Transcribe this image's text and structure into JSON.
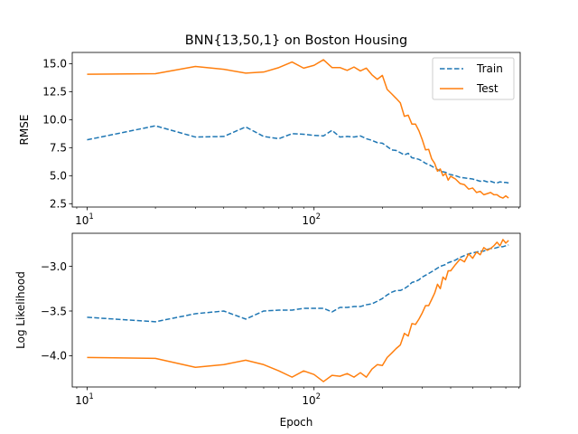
{
  "figure": {
    "title": "BNN{13,50,1} on Boston Housing"
  },
  "chart_data": [
    {
      "type": "line",
      "title": "BNN{13,50,1} on Boston Housing",
      "xlabel": "",
      "ylabel": "RMSE",
      "xscale": "log",
      "xlim": [
        8.6,
        810
      ],
      "ylim": [
        2.2,
        16.0
      ],
      "yticks": [
        2.5,
        5.0,
        7.5,
        10.0,
        12.5,
        15.0
      ],
      "ytick_labels": [
        "2.5",
        "5.0",
        "7.5",
        "10.0",
        "12.5",
        "15.0"
      ],
      "xticks": [
        10,
        100
      ],
      "xtick_labels": [
        {
          "base": "10",
          "exp": "1"
        },
        {
          "base": "10",
          "exp": "2"
        }
      ],
      "legend": {
        "position": "top-right",
        "entries": [
          "Train",
          "Test"
        ]
      },
      "series": [
        {
          "name": "Train",
          "color": "#1f77b4",
          "style": "dashed",
          "x": [
            10,
            20,
            30,
            40,
            50,
            60,
            70,
            80,
            90,
            100,
            110,
            120,
            130,
            140,
            150,
            160,
            170,
            180,
            190,
            200,
            210,
            220,
            230,
            240,
            250,
            260,
            270,
            280,
            290,
            300,
            310,
            320,
            330,
            340,
            350,
            360,
            370,
            380,
            390,
            400,
            420,
            440,
            460,
            480,
            500,
            520,
            540,
            560,
            580,
            600,
            620,
            640,
            660,
            680,
            700,
            720
          ],
          "y": [
            8.2,
            9.45,
            8.45,
            8.5,
            9.35,
            8.5,
            8.3,
            8.75,
            8.7,
            8.6,
            8.55,
            9.05,
            8.45,
            8.5,
            8.45,
            8.55,
            8.3,
            8.15,
            7.95,
            7.9,
            7.6,
            7.3,
            7.25,
            7.05,
            6.85,
            7.0,
            6.6,
            6.55,
            6.45,
            6.3,
            6.1,
            6.0,
            5.85,
            5.7,
            5.55,
            5.4,
            5.35,
            5.3,
            5.15,
            5.1,
            5.0,
            4.85,
            4.8,
            4.75,
            4.7,
            4.6,
            4.5,
            4.55,
            4.45,
            4.5,
            4.4,
            4.35,
            4.45,
            4.4,
            4.4,
            4.35
          ]
        },
        {
          "name": "Test",
          "color": "#ff7f0e",
          "style": "solid",
          "x": [
            10,
            20,
            30,
            40,
            50,
            60,
            70,
            80,
            90,
            100,
            110,
            120,
            130,
            140,
            150,
            160,
            170,
            180,
            190,
            200,
            210,
            220,
            230,
            240,
            250,
            260,
            270,
            280,
            290,
            300,
            310,
            320,
            330,
            340,
            350,
            360,
            370,
            380,
            390,
            400,
            420,
            440,
            460,
            480,
            500,
            520,
            540,
            560,
            580,
            600,
            620,
            640,
            660,
            680,
            700,
            720
          ],
          "y": [
            14.05,
            14.1,
            14.75,
            14.5,
            14.15,
            14.25,
            14.65,
            15.15,
            14.6,
            14.85,
            15.35,
            14.65,
            14.65,
            14.4,
            14.7,
            14.35,
            14.6,
            14.0,
            13.6,
            13.95,
            12.7,
            12.3,
            11.9,
            11.5,
            10.3,
            10.4,
            9.6,
            9.6,
            9.0,
            8.2,
            7.3,
            7.35,
            6.5,
            6.1,
            5.4,
            5.6,
            5.0,
            5.2,
            4.6,
            4.95,
            4.7,
            4.3,
            4.2,
            3.8,
            3.9,
            3.5,
            3.6,
            3.3,
            3.4,
            3.5,
            3.3,
            3.3,
            3.1,
            3.0,
            3.2,
            3.0
          ]
        }
      ]
    },
    {
      "type": "line",
      "title": "",
      "xlabel": "Epoch",
      "ylabel": "Log Likelihood",
      "xscale": "log",
      "xlim": [
        8.6,
        810
      ],
      "ylim": [
        -4.35,
        -2.63
      ],
      "yticks": [
        -4.0,
        -3.5,
        -3.0
      ],
      "ytick_labels": [
        "−4.0",
        "−3.5",
        "−3.0"
      ],
      "xticks": [
        10,
        100
      ],
      "xtick_labels": [
        {
          "base": "10",
          "exp": "1"
        },
        {
          "base": "10",
          "exp": "2"
        }
      ],
      "series": [
        {
          "name": "Train",
          "color": "#1f77b4",
          "style": "dashed",
          "x": [
            10,
            20,
            30,
            40,
            50,
            60,
            70,
            80,
            90,
            100,
            110,
            120,
            130,
            140,
            150,
            160,
            170,
            180,
            190,
            200,
            210,
            220,
            230,
            240,
            250,
            260,
            270,
            280,
            290,
            300,
            310,
            320,
            330,
            340,
            350,
            360,
            370,
            380,
            390,
            400,
            420,
            440,
            460,
            480,
            500,
            520,
            540,
            560,
            580,
            600,
            620,
            640,
            660,
            680,
            700,
            720
          ],
          "y": [
            -3.57,
            -3.62,
            -3.53,
            -3.5,
            -3.59,
            -3.5,
            -3.49,
            -3.49,
            -3.47,
            -3.47,
            -3.47,
            -3.51,
            -3.46,
            -3.46,
            -3.45,
            -3.45,
            -3.43,
            -3.42,
            -3.39,
            -3.36,
            -3.32,
            -3.29,
            -3.27,
            -3.27,
            -3.25,
            -3.22,
            -3.18,
            -3.17,
            -3.15,
            -3.12,
            -3.1,
            -3.08,
            -3.06,
            -3.04,
            -3.02,
            -3.0,
            -2.99,
            -2.98,
            -2.96,
            -2.95,
            -2.93,
            -2.9,
            -2.88,
            -2.86,
            -2.85,
            -2.84,
            -2.83,
            -2.83,
            -2.81,
            -2.8,
            -2.8,
            -2.79,
            -2.78,
            -2.78,
            -2.77,
            -2.76
          ]
        },
        {
          "name": "Test",
          "color": "#ff7f0e",
          "style": "solid",
          "x": [
            10,
            20,
            30,
            40,
            50,
            60,
            70,
            80,
            90,
            100,
            110,
            120,
            130,
            140,
            150,
            160,
            170,
            180,
            190,
            200,
            210,
            220,
            230,
            240,
            250,
            260,
            270,
            280,
            290,
            300,
            310,
            320,
            330,
            340,
            350,
            360,
            370,
            380,
            390,
            400,
            420,
            440,
            460,
            480,
            500,
            520,
            540,
            560,
            580,
            600,
            620,
            640,
            660,
            680,
            700,
            720
          ],
          "y": [
            -4.02,
            -4.03,
            -4.13,
            -4.1,
            -4.05,
            -4.1,
            -4.17,
            -4.24,
            -4.17,
            -4.21,
            -4.29,
            -4.22,
            -4.23,
            -4.2,
            -4.24,
            -4.19,
            -4.24,
            -4.15,
            -4.1,
            -4.11,
            -4.02,
            -3.97,
            -3.92,
            -3.88,
            -3.75,
            -3.78,
            -3.64,
            -3.65,
            -3.59,
            -3.52,
            -3.44,
            -3.44,
            -3.37,
            -3.3,
            -3.2,
            -3.25,
            -3.12,
            -3.15,
            -3.05,
            -3.05,
            -2.98,
            -2.92,
            -2.95,
            -2.86,
            -2.91,
            -2.84,
            -2.87,
            -2.79,
            -2.82,
            -2.8,
            -2.77,
            -2.73,
            -2.77,
            -2.7,
            -2.74,
            -2.71
          ]
        }
      ]
    }
  ]
}
